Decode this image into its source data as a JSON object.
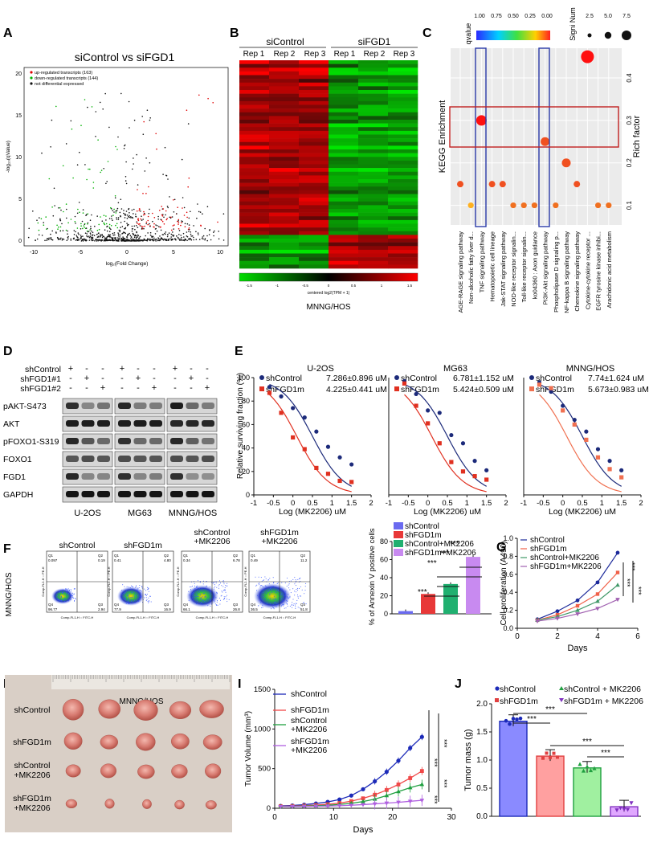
{
  "panels": {
    "A": {
      "letter": "A",
      "title": "siControl vs siFGD1",
      "legend": [
        "up-regulated transcripts (163)",
        "down-regulated transcripts (144)",
        "not differential expressed"
      ],
      "colors": {
        "up": "#e00000",
        "down": "#00b000",
        "ns": "#111111"
      }
    },
    "B": {
      "letter": "B",
      "groups": [
        "siControl",
        "siFGD1"
      ],
      "reps": [
        "Rep 1",
        "Rep 2",
        "Rep 3",
        "Rep 1",
        "Rep 2",
        "Rep 3"
      ],
      "scale_ticks": [
        "-1.5",
        "-1",
        "-0.5",
        "0",
        "0.5",
        "1",
        "1.5"
      ],
      "scale_label": "centered log2(TPM + 1)",
      "cell_line": "MNNG/HOS"
    },
    "C": {
      "letter": "C",
      "qvalue_title": "qvalue",
      "qvalue_ticks": [
        "1.00",
        "0.75",
        "0.50",
        "0.25",
        "0.00"
      ],
      "signi_title": "Signi Num",
      "signi_ticks": [
        "2.5",
        "5.0",
        "7.5"
      ],
      "ylabel_left": "KEGG Enrichment",
      "ylabel_right": "Rich factor",
      "rich_ticks": [
        "0.1",
        "0.2",
        "0.3",
        "0.4"
      ]
    },
    "D": {
      "letter": "D",
      "row_labels": [
        "shControl",
        "shFGD1#1",
        "shFGD1#2"
      ],
      "signs": [
        "+",
        "-",
        "-",
        "-",
        "+",
        "-",
        "-",
        "-",
        "+"
      ],
      "proteins": [
        "pAKT-S473",
        "AKT",
        "pFOXO1-S319",
        "FOXO1",
        "FGD1",
        "GAPDH"
      ],
      "cell_lines": [
        "U-2OS",
        "MG63",
        "MNNG/HOS"
      ]
    },
    "E": {
      "letter": "E",
      "ylabel": "Relative surviving fraction (%)",
      "xlabel": "Log (MK2206) uM",
      "subpanels": [
        {
          "title": "U-2OS",
          "ctrl_label": "shControl",
          "ctrl_ic50": "7.286±0.896 uM",
          "kd_label": "shFGD1m",
          "kd_ic50": "4.225±0.441 uM"
        },
        {
          "title": "MG63",
          "ctrl_label": "shControl",
          "ctrl_ic50": "6.781±1.152 uM",
          "kd_label": "shFGD1m",
          "kd_ic50": "5.424±0.509 uM"
        },
        {
          "title": "MNNG/HOS",
          "ctrl_label": "shControl",
          "ctrl_ic50": "7.74±1.624 uM",
          "kd_label": "shFGD1m",
          "kd_ic50": "5.673±0.983 uM"
        }
      ],
      "x_ticks": [
        "-1",
        "-0.5",
        "0",
        "0.5",
        "1",
        "1.5",
        "2"
      ],
      "y_ticks": [
        "0",
        "20",
        "40",
        "60",
        "80",
        "100"
      ]
    },
    "F": {
      "letter": "F",
      "cell_line": "MNNG/HOS",
      "plots": [
        {
          "title": "shControl",
          "q": [
            "0.097",
            "0.19",
            "96.77",
            "2.94"
          ]
        },
        {
          "title": "shFGD1m",
          "q": [
            "0.41",
            "4.80",
            "77.9",
            "16.9"
          ]
        },
        {
          "title": "shControl\n+MK2206",
          "q": [
            "0.34",
            "6.78",
            "66.1",
            "26.8"
          ]
        },
        {
          "title": "shFGD1m\n+MK2206",
          "q": [
            "0.49",
            "11.2",
            "36.5",
            "51.8"
          ]
        }
      ],
      "axis_x": "Comp-FL1-H :: FITC-H",
      "axis_y": "Comp-FL2-H :: PE-H",
      "bar_ylabel": "% of Annexin V positive cells",
      "bar_legend": [
        "shControl",
        "shFGD1m",
        "shControl+MK2206",
        "shFGD1m+MK2206"
      ],
      "sig": "***"
    },
    "G": {
      "letter": "G",
      "ylabel": "Cell proliferation (A490)",
      "xlabel": "Days",
      "legend": [
        "shControl",
        "shFGD1m",
        "shControl+MK2206",
        "shFGD1m+MK2206"
      ],
      "x_ticks": [
        "0",
        "2",
        "4",
        "6"
      ],
      "y_ticks": [
        "0.0",
        "0.2",
        "0.4",
        "0.6",
        "0.8",
        "1.0"
      ]
    },
    "H": {
      "letter": "H",
      "cell_line": "MNNG/HOS",
      "row_labels": [
        "shControl",
        "shFGD1m",
        "shControl\n+MK2206",
        "shFGD1m\n+MK2206"
      ]
    },
    "I": {
      "letter": "I",
      "ylabel": "Tumor Volume (mm³)",
      "xlabel": "Days",
      "legend": [
        "shControl",
        "shFGD1m",
        "shControl\n+MK2206",
        "shFGD1m\n+MK2206"
      ],
      "x_ticks": [
        "0",
        "10",
        "20",
        "30"
      ],
      "y_ticks": [
        "0",
        "500",
        "1000",
        "1500"
      ]
    },
    "J": {
      "letter": "J",
      "ylabel": "Tumor mass (g)",
      "legend": [
        "shControl",
        "shFGD1m",
        "shControl + MK2206",
        "shFGD1m + MK2206"
      ],
      "y_ticks": [
        "0.0",
        "0.5",
        "1.0",
        "1.5",
        "2.0"
      ]
    }
  },
  "chart_data": [
    {
      "panel": "E-U-2OS",
      "type": "scatter",
      "x": [
        -0.6,
        -0.3,
        0,
        0.3,
        0.6,
        0.9,
        1.2,
        1.5
      ],
      "series": [
        {
          "name": "shControl",
          "values": [
            92,
            84,
            74,
            66,
            54,
            41,
            32,
            26
          ]
        },
        {
          "name": "shFGD1m",
          "values": [
            87,
            70,
            49,
            39,
            23,
            18,
            12,
            11
          ]
        }
      ],
      "xlim": [
        -1,
        2
      ],
      "ylim": [
        0,
        100
      ]
    },
    {
      "panel": "E-MG63",
      "type": "scatter",
      "x": [
        -0.6,
        -0.3,
        0,
        0.3,
        0.6,
        0.9,
        1.2,
        1.5
      ],
      "series": [
        {
          "name": "shControl",
          "values": [
            97,
            86,
            72,
            70,
            51,
            44,
            29,
            21
          ]
        },
        {
          "name": "shFGD1m",
          "values": [
            95,
            76,
            61,
            44,
            28,
            20,
            16,
            13
          ]
        }
      ],
      "xlim": [
        -1,
        2
      ],
      "ylim": [
        0,
        100
      ]
    },
    {
      "panel": "E-MNNG/HOS",
      "type": "scatter",
      "x": [
        -0.6,
        -0.3,
        0,
        0.3,
        0.6,
        0.9,
        1.2,
        1.5
      ],
      "series": [
        {
          "name": "shControl",
          "values": [
            96,
            88,
            76,
            64,
            54,
            39,
            29,
            21
          ]
        },
        {
          "name": "shFGD1m",
          "values": [
            94,
            91,
            72,
            60,
            47,
            32,
            22,
            15
          ]
        }
      ],
      "xlim": [
        -1,
        2
      ],
      "ylim": [
        0,
        100
      ]
    },
    {
      "panel": "F-bar",
      "type": "bar",
      "categories": [
        "shControl",
        "shFGD1m",
        "shControl+MK2206",
        "shFGD1m+MK2206"
      ],
      "values": [
        3,
        22,
        33,
        63
      ],
      "ylim": [
        0,
        80
      ],
      "y_ticks": [
        0,
        20,
        40,
        60,
        80
      ]
    },
    {
      "panel": "G",
      "type": "line",
      "x": [
        1,
        2,
        3,
        4,
        5
      ],
      "series": [
        {
          "name": "shControl",
          "values": [
            0.1,
            0.19,
            0.31,
            0.51,
            0.84
          ]
        },
        {
          "name": "shFGD1m",
          "values": [
            0.09,
            0.15,
            0.25,
            0.38,
            0.62
          ]
        },
        {
          "name": "shControl+MK2206",
          "values": [
            0.09,
            0.13,
            0.2,
            0.3,
            0.48
          ]
        },
        {
          "name": "shFGD1m+MK2206",
          "values": [
            0.08,
            0.11,
            0.16,
            0.22,
            0.32
          ]
        }
      ],
      "xlim": [
        0,
        6
      ],
      "ylim": [
        0,
        1.0
      ]
    },
    {
      "panel": "I",
      "type": "line",
      "x": [
        1,
        3,
        5,
        7,
        9,
        11,
        13,
        15,
        17,
        19,
        21,
        23,
        25
      ],
      "series": [
        {
          "name": "shControl",
          "values": [
            30,
            35,
            45,
            60,
            80,
            110,
            160,
            240,
            340,
            460,
            600,
            760,
            900
          ]
        },
        {
          "name": "shFGD1m",
          "values": [
            25,
            28,
            33,
            40,
            50,
            65,
            90,
            125,
            170,
            230,
            300,
            380,
            470
          ]
        },
        {
          "name": "shControl\n+MK2206",
          "values": [
            22,
            24,
            28,
            32,
            38,
            48,
            62,
            85,
            115,
            160,
            210,
            260,
            300
          ]
        },
        {
          "name": "shFGD1m\n+MK2206",
          "values": [
            20,
            21,
            23,
            25,
            28,
            32,
            38,
            46,
            55,
            65,
            75,
            88,
            100
          ]
        }
      ],
      "xlim": [
        0,
        30
      ],
      "ylim": [
        0,
        1500
      ]
    },
    {
      "panel": "J",
      "type": "bar",
      "categories": [
        "shControl",
        "shFGD1m",
        "shControl + MK2206",
        "shFGD1m + MK2206"
      ],
      "values": [
        1.69,
        1.07,
        0.86,
        0.17
      ],
      "ylim": [
        0,
        2.0
      ]
    },
    {
      "panel": "C",
      "type": "scatter",
      "categories": [
        "AGE-RAGE signaling pathway",
        "Non-alcoholic fatty liver d...",
        "TNF signaling pathway",
        "Hematopoietic cell lineage",
        "Jak-STAT signaling pathway",
        "NOD-like receptor signalin...",
        "Toll-like receptor signalin...",
        "ko04360 : Axon guidance",
        "PI3K-Akt signaling pathway",
        "Phospholipase D signaling p...",
        "NF-kappa B signaling pathway",
        "Chemokine signaling pathway",
        "Cytokine-cytokine receptor ...",
        "EGFR tyrosine kinase inhibi...",
        "Arachidonic acid metabolism"
      ],
      "rich_factor": [
        0.15,
        0.1,
        0.3,
        0.15,
        0.15,
        0.1,
        0.1,
        0.1,
        0.25,
        0.1,
        0.2,
        0.15,
        0.45,
        0.1,
        0.1
      ],
      "ylim": [
        0.05,
        0.47
      ]
    }
  ]
}
